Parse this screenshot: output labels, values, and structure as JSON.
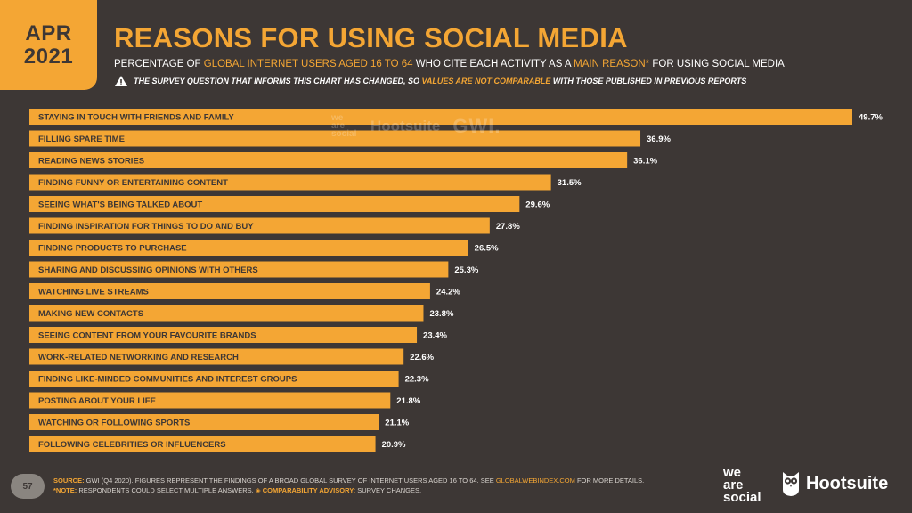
{
  "badge": {
    "month": "APR",
    "year": "2021"
  },
  "title": "REASONS FOR USING SOCIAL MEDIA",
  "subtitle": {
    "p1": "PERCENTAGE OF ",
    "h1": "GLOBAL INTERNET USERS AGED 16 TO 64",
    "p2": " WHO CITE EACH ACTIVITY AS A ",
    "h2": "MAIN REASON*",
    "p3": " FOR USING SOCIAL MEDIA"
  },
  "warning": {
    "icon": "warning-triangle-icon",
    "p1": "THE SURVEY QUESTION THAT INFORMS THIS CHART HAS CHANGED, SO ",
    "h1": "VALUES ARE NOT COMPARABLE",
    "p2": " WITH THOSE PUBLISHED IN PREVIOUS REPORTS"
  },
  "watermark": {
    "was": "we are social",
    "hootsuite": "Hootsuite",
    "gwi": "GWI."
  },
  "chart_data": {
    "type": "bar",
    "orientation": "horizontal",
    "categories": [
      "STAYING IN TOUCH WITH FRIENDS AND FAMILY",
      "FILLING SPARE TIME",
      "READING NEWS STORIES",
      "FINDING FUNNY OR ENTERTAINING CONTENT",
      "SEEING WHAT'S BEING TALKED ABOUT",
      "FINDING INSPIRATION FOR THINGS TO DO AND BUY",
      "FINDING PRODUCTS TO PURCHASE",
      "SHARING AND DISCUSSING OPINIONS WITH OTHERS",
      "WATCHING LIVE STREAMS",
      "MAKING NEW CONTACTS",
      "SEEING CONTENT FROM YOUR FAVOURITE BRANDS",
      "WORK-RELATED NETWORKING AND RESEARCH",
      "FINDING LIKE-MINDED COMMUNITIES AND INTEREST GROUPS",
      "POSTING ABOUT YOUR LIFE",
      "WATCHING OR FOLLOWING SPORTS",
      "FOLLOWING CELEBRITIES OR INFLUENCERS"
    ],
    "values": [
      49.7,
      36.9,
      36.1,
      31.5,
      29.6,
      27.8,
      26.5,
      25.3,
      24.2,
      23.8,
      23.4,
      22.6,
      22.3,
      21.8,
      21.1,
      20.9
    ],
    "value_labels": [
      "49.7%",
      "36.9%",
      "36.1%",
      "31.5%",
      "29.6%",
      "27.8%",
      "26.5%",
      "25.3%",
      "24.2%",
      "23.8%",
      "23.4%",
      "22.6%",
      "22.3%",
      "21.8%",
      "21.1%",
      "20.9%"
    ],
    "xlim": [
      0,
      49.7
    ],
    "grid": false,
    "bar_color": "#f4a634"
  },
  "page_number": "57",
  "footer": {
    "source_label": "SOURCE:",
    "source_text": " GWI (Q4 2020). FIGURES REPRESENT THE FINDINGS OF A BROAD GLOBAL SURVEY OF INTERNET USERS AGED 16 TO 64. SEE ",
    "source_link": "GLOBALWEBINDEX.COM",
    "source_end": " FOR MORE DETAILS.",
    "note_label": "*NOTE:",
    "note_text": " RESPONDENTS COULD SELECT MULTIPLE ANSWERS. ",
    "advisory_label": "◈ COMPARABILITY ADVISORY:",
    "advisory_text": " SURVEY CHANGES."
  },
  "logos": {
    "was": [
      "we",
      "are",
      "social"
    ],
    "hootsuite": "Hootsuite",
    "owl_icon": "owl-icon"
  },
  "colors": {
    "background": "#3d3735",
    "accent": "#f4a634",
    "text": "#ffffff"
  }
}
